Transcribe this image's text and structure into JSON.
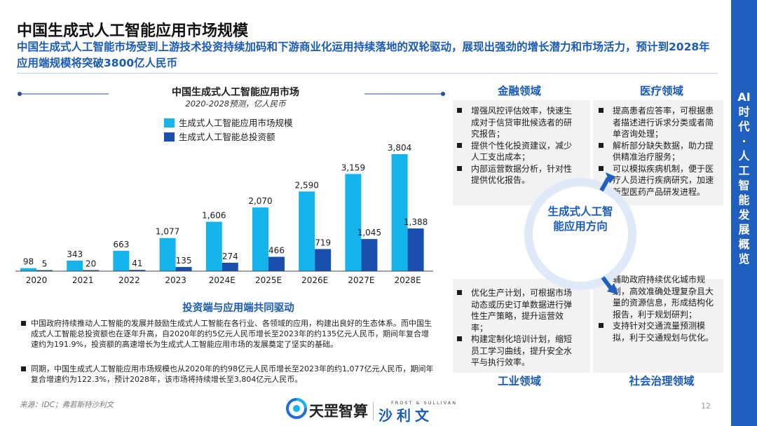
{
  "header": {
    "title": "中国生成式人工智能应用市场规模",
    "subtitle": "中国生成式人工智能市场受到上游技术投资持续加码和下游商业化运用持续落地的双轮驱动，展现出强劲的增长潜力和市场活力，预计到2028年应用端规模将突破3800亿人民币"
  },
  "sidebar": {
    "text": "AI时代·人工智能发展概览"
  },
  "chart_data": {
    "type": "bar",
    "title": "中国生成式人工智能应用市场",
    "subtitle": "2020-2028预测，亿人民币",
    "categories": [
      "2020",
      "2021",
      "2022",
      "2023",
      "2024E",
      "2025E",
      "2026E",
      "2027E",
      "2028E"
    ],
    "series": [
      {
        "name": "生成式人工智能应用市场规模",
        "color": "#16b4ec",
        "values": [
          98,
          343,
          663,
          1077,
          1606,
          2070,
          2590,
          3159,
          3804
        ]
      },
      {
        "name": "生成式人工智能总投资额",
        "color": "#1a4fb0",
        "values": [
          5,
          20,
          41,
          135,
          274,
          466,
          719,
          1045,
          1388
        ]
      }
    ],
    "ylim": [
      0,
      3804
    ],
    "grid": false,
    "legend": "top-left"
  },
  "drivers": {
    "title": "投资端与应用端共同驱动",
    "notes": [
      "中国政府持续推动人工智能的发展并鼓励生成式人工智能在各行业、各领域的应用，构建出良好的生态体系。而中国生成式人工智能总投资额也在逐年升高，自2020年的约5亿元人民币增长至2023年的约135亿元人民币，期间年复合增速约为191.9%，投资额的高速增长为生成式人工智能应用市场的发展奠定了坚实的基础。",
      "同期，中国生成式人工智能应用市场规模也从2020年的约98亿元人民币增长至2023年的约1,077亿元人民币，期间年复合增速约为122.3%，预计2028年，该市场将持续增长至3,804亿元人民币。"
    ]
  },
  "footer": {
    "source": "来源：IDC；弗若斯特沙利文",
    "page": "12",
    "logo_main": "天罡智算",
    "logo_partner_en": "FROST & SULLIVAN",
    "logo_partner_cn": "沙利文"
  },
  "applications": {
    "center": "生成式人工智能应用方向",
    "finance": {
      "title": "金融领域",
      "items": [
        "增强风控评估效率，快速生成对于信贷审批候选者的研究报告；",
        "提供个性化投资建议，减少人工支出成本；",
        "内部运营数据分析，针对性提供优化报告。"
      ]
    },
    "medical": {
      "title": "医疗领域",
      "items": [
        "提高患者应答率，可根据患者描述进行诉求分类或者简单咨询处理；",
        "解析部分缺失数据，助力提供精准治疗服务；",
        "可以模拟疾病机制，便于医疗人员进行疾病研究，加速新型医药产品研发进程。"
      ]
    },
    "industry": {
      "title": "工业领域",
      "items": [
        "优化生产计划，可根据市场动态或历史订单数据进行弹性生产策略，提升运营效率；",
        "构建定制化培训计划，缩短员工学习曲线，提升安全水平与执行效率。"
      ]
    },
    "governance": {
      "title": "社会治理领域",
      "items": [
        "辅助政府持续优化城市规划，高效准确处理复杂且大量的资源信息，形成结构化报告，利于规划研判；",
        "支持针对交通流量预测模拟，利于交通规划与优化。"
      ]
    }
  }
}
